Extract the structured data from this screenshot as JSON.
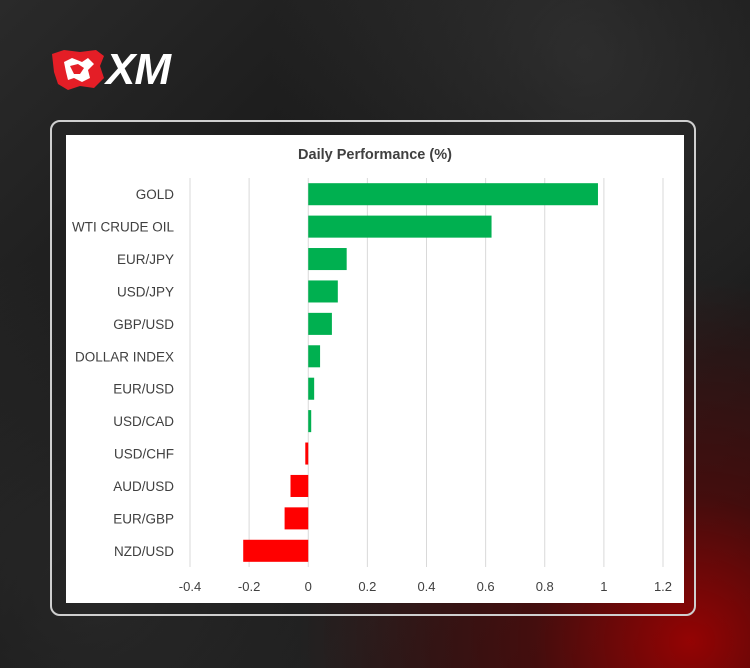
{
  "brand": {
    "name": "XM",
    "icon": "xm-bull-logo-icon",
    "accent": "#e41e26"
  },
  "chart_data": {
    "type": "bar",
    "orientation": "horizontal",
    "title": "Daily Performance (%)",
    "categories": [
      "GOLD",
      "WTI CRUDE OIL",
      "EUR/JPY",
      "USD/JPY",
      "GBP/USD",
      "DOLLAR INDEX",
      "EUR/USD",
      "USD/CAD",
      "USD/CHF",
      "AUD/USD",
      "EUR/GBP",
      "NZD/USD"
    ],
    "values": [
      0.98,
      0.62,
      0.13,
      0.1,
      0.08,
      0.04,
      0.02,
      0.01,
      -0.01,
      -0.06,
      -0.08,
      -0.22
    ],
    "xlim": [
      -0.4,
      1.2
    ],
    "xticks": [
      -0.4,
      -0.2,
      0,
      0.2,
      0.4,
      0.6,
      0.8,
      1,
      1.2
    ],
    "xtick_labels": [
      "-0.4",
      "-0.2",
      "0",
      "0.2",
      "0.4",
      "0.6",
      "0.8",
      "1",
      "1.2"
    ],
    "grid": true,
    "colors": {
      "positive": "#00b050",
      "negative": "#ff0000",
      "grid": "#d9d9d9",
      "text": "#404040"
    }
  }
}
